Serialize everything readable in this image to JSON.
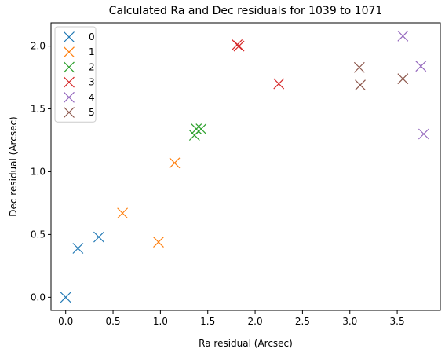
{
  "chart_data": {
    "type": "scatter",
    "title": "Calculated Ra and Dec residuals for 1039 to 1071",
    "xlabel": "Ra residual (Arcsec)",
    "ylabel": "Dec residual (Arcsec)",
    "xlim": [
      -0.155,
      3.955
    ],
    "ylim": [
      -0.104,
      2.185
    ],
    "xticks": [
      0.0,
      0.5,
      1.0,
      1.5,
      2.0,
      2.5,
      3.0,
      3.5
    ],
    "xtick_labels": [
      "0.0",
      "0.5",
      "1.0",
      "1.5",
      "2.0",
      "2.5",
      "3.0",
      "3.5"
    ],
    "yticks": [
      0.0,
      0.5,
      1.0,
      1.5,
      2.0
    ],
    "ytick_labels": [
      "0.0",
      "0.5",
      "1.0",
      "1.5",
      "2.0"
    ],
    "grid": false,
    "legend_position": "top-left",
    "marker": "x",
    "series": [
      {
        "name": "0",
        "color": "#1f77b4",
        "points": [
          [
            0.0,
            0.0
          ],
          [
            0.13,
            0.39
          ],
          [
            0.35,
            0.48
          ]
        ]
      },
      {
        "name": "1",
        "color": "#ff7f0e",
        "points": [
          [
            0.6,
            0.67
          ],
          [
            0.98,
            0.44
          ],
          [
            1.15,
            1.07
          ]
        ]
      },
      {
        "name": "2",
        "color": "#2ca02c",
        "points": [
          [
            1.36,
            1.29
          ],
          [
            1.38,
            1.34
          ],
          [
            1.43,
            1.34
          ]
        ]
      },
      {
        "name": "3",
        "color": "#d62728",
        "points": [
          [
            1.81,
            2.01
          ],
          [
            1.83,
            2.0
          ],
          [
            2.25,
            1.7
          ]
        ]
      },
      {
        "name": "4",
        "color": "#9467bd",
        "points": [
          [
            3.56,
            2.08
          ],
          [
            3.75,
            1.84
          ],
          [
            3.78,
            1.3
          ]
        ]
      },
      {
        "name": "5",
        "color": "#8c564b",
        "points": [
          [
            3.1,
            1.83
          ],
          [
            3.11,
            1.69
          ],
          [
            3.56,
            1.74
          ]
        ]
      }
    ]
  }
}
